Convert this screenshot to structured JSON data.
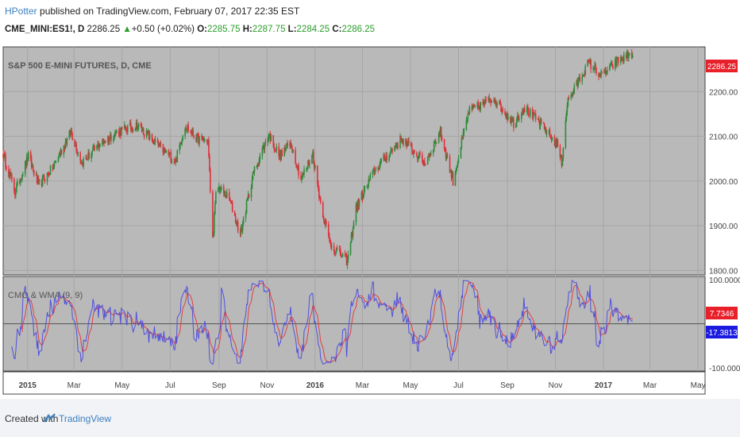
{
  "header": {
    "author": "HPotter",
    "published_text": "published on TradingView.com, February 07, 2017 22:35 EST",
    "symbol": "CME_MINI:ES1!, D",
    "last": "2286.25",
    "change": "+0.50 (+0.02%)",
    "o_label": "O:",
    "o_value": "2285.75",
    "h_label": "H:",
    "h_value": "2287.75",
    "l_label": "L:",
    "l_value": "2284.25",
    "c_label": "C:",
    "c_value": "2286.25"
  },
  "footer": {
    "created_with": "Created with",
    "brand": "TradingView"
  },
  "colors": {
    "up": "#2e8b3a",
    "down": "#e0303a",
    "pane_bg": "#b9b9b9",
    "cmo_line": "#5050e0",
    "wma_line": "#e04040"
  },
  "chart_data": [
    {
      "type": "candlestick",
      "title": "S&P 500 E-MINI FUTURES, D, CME",
      "ylim": [
        1790,
        2300
      ],
      "y_ticks": [
        "1800.00",
        "1900.00",
        "2000.00",
        "2100.00",
        "2200.00"
      ],
      "last_price_label": "2286.25",
      "close_path": [
        [
          "2014-12-01",
          2060
        ],
        [
          "2014-12-16",
          1975
        ],
        [
          "2015-01-02",
          2055
        ],
        [
          "2015-01-15",
          1990
        ],
        [
          "2015-02-02",
          2030
        ],
        [
          "2015-02-25",
          2110
        ],
        [
          "2015-03-11",
          2040
        ],
        [
          "2015-04-01",
          2080
        ],
        [
          "2015-04-25",
          2110
        ],
        [
          "2015-05-20",
          2125
        ],
        [
          "2015-06-15",
          2080
        ],
        [
          "2015-07-08",
          2045
        ],
        [
          "2015-07-20",
          2125
        ],
        [
          "2015-08-04",
          2095
        ],
        [
          "2015-08-18",
          2090
        ],
        [
          "2015-08-24",
          1870
        ],
        [
          "2015-08-29",
          1990
        ],
        [
          "2015-09-14",
          1960
        ],
        [
          "2015-09-28",
          1880
        ],
        [
          "2015-10-15",
          2020
        ],
        [
          "2015-11-03",
          2105
        ],
        [
          "2015-11-17",
          2055
        ],
        [
          "2015-12-01",
          2085
        ],
        [
          "2015-12-14",
          2005
        ],
        [
          "2015-12-29",
          2060
        ],
        [
          "2016-01-08",
          1950
        ],
        [
          "2016-01-20",
          1860
        ],
        [
          "2016-02-11",
          1820
        ],
        [
          "2016-02-22",
          1940
        ],
        [
          "2016-03-15",
          2020
        ],
        [
          "2016-04-20",
          2095
        ],
        [
          "2016-05-19",
          2040
        ],
        [
          "2016-06-08",
          2110
        ],
        [
          "2016-06-24",
          2000
        ],
        [
          "2016-07-14",
          2155
        ],
        [
          "2016-08-15",
          2185
        ],
        [
          "2016-09-09",
          2130
        ],
        [
          "2016-09-22",
          2165
        ],
        [
          "2016-10-12",
          2130
        ],
        [
          "2016-11-04",
          2080
        ],
        [
          "2016-11-09",
          2040
        ],
        [
          "2016-11-16",
          2175
        ],
        [
          "2016-12-13",
          2265
        ],
        [
          "2016-12-30",
          2235
        ],
        [
          "2017-01-20",
          2270
        ],
        [
          "2017-02-07",
          2286
        ]
      ]
    },
    {
      "type": "line",
      "title": "CMO & WMA (9, 9)",
      "ylim": [
        -100,
        100
      ],
      "y_ticks": [
        "100.0000",
        "-100.0000"
      ],
      "series": [
        {
          "name": "CMO",
          "last_label": "-17.3813"
        },
        {
          "name": "WMA",
          "last_label": "7.7346"
        }
      ]
    }
  ],
  "x_axis": {
    "range": [
      "2014-12-01",
      "2017-05-10"
    ],
    "ticks": [
      {
        "label": "2015",
        "date": "2015-01-01",
        "bold": true
      },
      {
        "label": "Mar",
        "date": "2015-03-01"
      },
      {
        "label": "May",
        "date": "2015-05-01"
      },
      {
        "label": "Jul",
        "date": "2015-07-01"
      },
      {
        "label": "Sep",
        "date": "2015-09-01"
      },
      {
        "label": "Nov",
        "date": "2015-11-01"
      },
      {
        "label": "2016",
        "date": "2016-01-01",
        "bold": true
      },
      {
        "label": "Mar",
        "date": "2016-03-01"
      },
      {
        "label": "May",
        "date": "2016-05-01"
      },
      {
        "label": "Jul",
        "date": "2016-07-01"
      },
      {
        "label": "Sep",
        "date": "2016-09-01"
      },
      {
        "label": "Nov",
        "date": "2016-11-01"
      },
      {
        "label": "2017",
        "date": "2017-01-01",
        "bold": true
      },
      {
        "label": "Mar",
        "date": "2017-03-01"
      },
      {
        "label": "May",
        "date": "2017-05-01"
      }
    ]
  }
}
